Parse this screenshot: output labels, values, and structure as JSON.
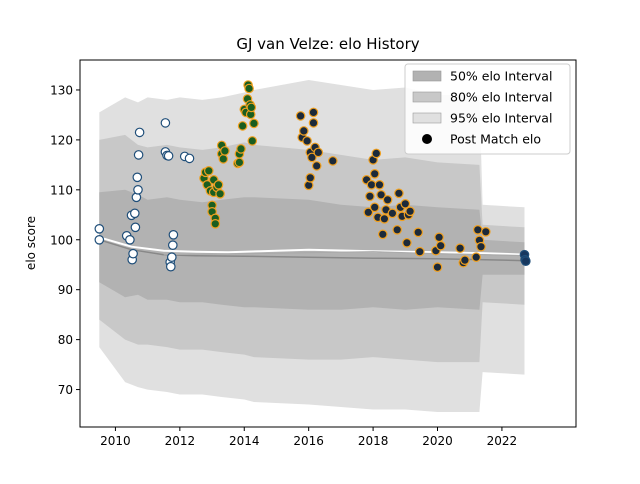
{
  "chart_data": {
    "type": "scatter",
    "title": "GJ van Velze: elo History",
    "xlabel": "",
    "ylabel": "elo score",
    "xlim": [
      2008.9,
      2024.3
    ],
    "ylim": [
      62.5,
      136
    ],
    "x_ticks": [
      2010,
      2012,
      2014,
      2016,
      2018,
      2020,
      2022
    ],
    "y_ticks": [
      70,
      80,
      90,
      100,
      110,
      120,
      130
    ],
    "grid": false,
    "legend_placement": "top-right",
    "legend": [
      {
        "label": "50% elo Interval",
        "kind": "patch",
        "color": "#b2b2b2"
      },
      {
        "label": "80% elo Interval",
        "kind": "patch",
        "color": "#c8c8c8"
      },
      {
        "label": "95% elo Interval",
        "kind": "patch",
        "color": "#e0e0e0"
      },
      {
        "label": "Post Match elo",
        "kind": "marker",
        "color": "#000000"
      }
    ],
    "intervals": {
      "x": [
        2009.5,
        2010.3,
        2010.7,
        2011.0,
        2011.6,
        2012.0,
        2012.7,
        2013.3,
        2014.0,
        2014.3,
        2016.0,
        2017.0,
        2018.0,
        2019.0,
        2020.0,
        2021.3,
        2021.4,
        2022.7
      ],
      "p95_upper": [
        125.5,
        128.5,
        127.5,
        128.5,
        128.0,
        128.5,
        128.0,
        128.5,
        129.5,
        130.0,
        132.0,
        131.0,
        130.0,
        130.5,
        129.0,
        129.0,
        107.0,
        106.5
      ],
      "p80_upper": [
        120.0,
        121.0,
        119.0,
        118.5,
        119.0,
        118.5,
        118.0,
        118.5,
        119.5,
        119.0,
        118.0,
        117.0,
        116.0,
        116.5,
        115.5,
        115.0,
        103.0,
        102.5
      ],
      "p50_upper": [
        109.5,
        110.0,
        109.0,
        108.0,
        108.5,
        108.0,
        107.5,
        108.0,
        108.5,
        108.5,
        108.0,
        107.0,
        106.5,
        107.0,
        106.5,
        106.0,
        100.0,
        99.5
      ],
      "p50_lower": [
        91.5,
        88.5,
        89.0,
        88.0,
        88.0,
        87.5,
        87.5,
        87.0,
        86.5,
        86.5,
        86.0,
        86.0,
        86.5,
        86.0,
        86.5,
        86.0,
        93.0,
        93.0
      ],
      "p80_lower": [
        84.0,
        80.0,
        79.0,
        79.0,
        78.5,
        78.0,
        78.0,
        77.5,
        77.0,
        76.5,
        76.0,
        76.0,
        76.5,
        76.0,
        75.5,
        75.5,
        87.5,
        87.0
      ],
      "p95_lower": [
        78.5,
        71.5,
        70.5,
        70.0,
        69.5,
        69.0,
        69.0,
        68.5,
        68.0,
        67.5,
        67.0,
        66.5,
        66.0,
        66.0,
        65.5,
        65.5,
        73.5,
        73.0
      ]
    },
    "mean_lines": [
      {
        "x": [
          2009.5,
          2010.5,
          2011.5,
          2012.5,
          2013.5,
          2014.5,
          2016.0,
          2018.0,
          2020.0,
          2021.5,
          2022.8
        ],
        "y": [
          100.5,
          98.6,
          97.8,
          97.6,
          97.5,
          97.7,
          98.0,
          97.7,
          97.5,
          97.3,
          97.0
        ],
        "color": "#ffffff",
        "width": 2.0
      },
      {
        "x": [
          2009.5,
          2010.5,
          2011.5,
          2012.5,
          2014.0,
          2016.0,
          2018.0,
          2020.0,
          2022.8
        ],
        "y": [
          100.0,
          98.0,
          97.0,
          96.8,
          96.7,
          96.5,
          96.3,
          96.2,
          95.8
        ],
        "color": "#888888",
        "width": 1.5
      },
      {
        "x": [
          2011.5,
          2014.0,
          2016.0,
          2018.0,
          2020.0,
          2022.8
        ],
        "y": [
          97.0,
          97.2,
          97.4,
          97.6,
          97.2,
          96.8
        ],
        "color": "#aaaaaa",
        "width": 1.2
      }
    ],
    "series": [
      {
        "name": "",
        "fill": "#ffffff",
        "edge": "#1f4e79",
        "points": [
          [
            2009.5,
            102.2
          ],
          [
            2009.5,
            100.0
          ],
          [
            2010.35,
            100.8
          ],
          [
            2010.45,
            100.0
          ],
          [
            2010.5,
            104.9
          ],
          [
            2010.52,
            96.0
          ],
          [
            2010.55,
            97.2
          ],
          [
            2010.6,
            105.3
          ],
          [
            2010.62,
            102.5
          ],
          [
            2010.65,
            108.5
          ],
          [
            2010.68,
            112.5
          ],
          [
            2010.7,
            110.0
          ],
          [
            2010.72,
            117.0
          ],
          [
            2010.75,
            121.5
          ],
          [
            2011.55,
            123.4
          ],
          [
            2011.55,
            117.6
          ],
          [
            2011.6,
            116.9
          ],
          [
            2011.65,
            116.8
          ],
          [
            2011.7,
            95.5
          ],
          [
            2011.72,
            94.6
          ],
          [
            2011.75,
            96.5
          ],
          [
            2011.78,
            98.9
          ],
          [
            2011.8,
            101.0
          ],
          [
            2012.15,
            116.7
          ],
          [
            2012.3,
            116.3
          ]
        ]
      },
      {
        "name": "",
        "fill": "#1a5e20",
        "edge": "#f0a020",
        "points": [
          [
            2012.75,
            112.3
          ],
          [
            2012.8,
            113.5
          ],
          [
            2012.85,
            111.0
          ],
          [
            2012.9,
            113.8
          ],
          [
            2012.95,
            109.8
          ],
          [
            2013.0,
            106.9
          ],
          [
            2013.0,
            105.6
          ],
          [
            2013.05,
            112.0
          ],
          [
            2013.05,
            109.5
          ],
          [
            2013.1,
            104.3
          ],
          [
            2013.1,
            103.2
          ],
          [
            2013.15,
            110.5
          ],
          [
            2013.2,
            111.0
          ],
          [
            2013.25,
            109.2
          ],
          [
            2013.3,
            118.9
          ],
          [
            2013.3,
            117.2
          ],
          [
            2013.35,
            116.2
          ],
          [
            2013.4,
            117.8
          ],
          [
            2013.8,
            115.3
          ],
          [
            2013.85,
            117.2
          ],
          [
            2013.85,
            115.5
          ],
          [
            2013.9,
            118.2
          ],
          [
            2013.95,
            122.8
          ],
          [
            2014.0,
            126.1
          ],
          [
            2014.05,
            125.5
          ],
          [
            2014.1,
            128.2
          ],
          [
            2014.12,
            131.0
          ],
          [
            2014.15,
            130.3
          ],
          [
            2014.18,
            127.0
          ],
          [
            2014.2,
            125.1
          ],
          [
            2014.22,
            126.5
          ],
          [
            2014.25,
            119.8
          ],
          [
            2014.3,
            123.3
          ]
        ]
      },
      {
        "name": "",
        "fill": "#1c2a3a",
        "edge": "#f0a020",
        "points": [
          [
            2015.75,
            124.8
          ],
          [
            2015.8,
            120.5
          ],
          [
            2015.85,
            121.8
          ],
          [
            2015.95,
            119.8
          ],
          [
            2016.0,
            110.9
          ],
          [
            2016.05,
            112.4
          ],
          [
            2016.05,
            117.5
          ],
          [
            2016.1,
            116.5
          ],
          [
            2016.15,
            125.5
          ],
          [
            2016.15,
            123.4
          ],
          [
            2016.2,
            118.5
          ],
          [
            2016.25,
            114.8
          ],
          [
            2016.3,
            117.5
          ],
          [
            2016.75,
            115.8
          ],
          [
            2017.8,
            112.0
          ],
          [
            2017.85,
            105.5
          ],
          [
            2017.9,
            108.7
          ],
          [
            2017.95,
            111.0
          ],
          [
            2018.0,
            116.0
          ],
          [
            2018.05,
            106.5
          ],
          [
            2018.05,
            113.2
          ],
          [
            2018.1,
            117.3
          ],
          [
            2018.15,
            104.5
          ],
          [
            2018.2,
            111.0
          ],
          [
            2018.25,
            109.0
          ],
          [
            2018.3,
            101.1
          ],
          [
            2018.35,
            104.2
          ],
          [
            2018.4,
            106.0
          ],
          [
            2018.45,
            108.0
          ],
          [
            2018.6,
            105.3
          ],
          [
            2018.75,
            102.0
          ],
          [
            2018.8,
            109.3
          ],
          [
            2018.85,
            106.5
          ],
          [
            2018.9,
            104.7
          ],
          [
            2019.0,
            107.2
          ],
          [
            2019.05,
            99.4
          ],
          [
            2019.1,
            105.0
          ],
          [
            2019.15,
            105.7
          ],
          [
            2019.4,
            101.5
          ],
          [
            2019.45,
            97.6
          ],
          [
            2019.95,
            97.8
          ],
          [
            2020.0,
            94.5
          ],
          [
            2020.05,
            100.5
          ],
          [
            2020.1,
            98.8
          ],
          [
            2020.7,
            98.3
          ],
          [
            2020.8,
            95.4
          ],
          [
            2020.85,
            95.9
          ],
          [
            2021.2,
            96.5
          ],
          [
            2021.25,
            102.0
          ],
          [
            2021.3,
            99.9
          ],
          [
            2021.35,
            98.6
          ],
          [
            2021.5,
            101.6
          ]
        ]
      },
      {
        "name": "",
        "fill": "#17375e",
        "edge": "#1f4e79",
        "points": [
          [
            2022.7,
            97.0
          ],
          [
            2022.72,
            96.0
          ],
          [
            2022.74,
            95.7
          ]
        ]
      }
    ]
  }
}
